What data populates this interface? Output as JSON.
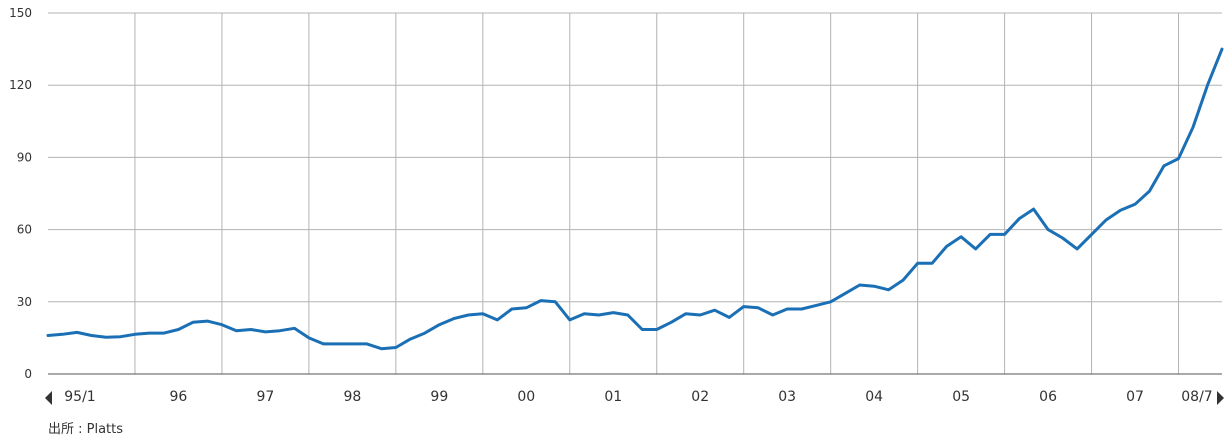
{
  "chart_data": {
    "type": "line",
    "title": "",
    "xlabel": "",
    "ylabel": "",
    "ylim": [
      0,
      150
    ],
    "y_ticks": [
      "0",
      "30",
      "60",
      "90",
      "120",
      "150"
    ],
    "x_tick_labels": [
      "95/1",
      "96",
      "97",
      "98",
      "99",
      "00",
      "01",
      "02",
      "03",
      "04",
      "05",
      "06",
      "07",
      "08/7"
    ],
    "x_range": [
      "1995-01",
      "2008-07"
    ],
    "grid": "on",
    "legend": "none",
    "series": [
      {
        "color": "#1a6fb5",
        "values": [
          [
            "1995-01",
            16
          ],
          [
            "1995-03",
            16.5
          ],
          [
            "1995-05",
            17.3
          ],
          [
            "1995-07",
            16
          ],
          [
            "1995-09",
            15.3
          ],
          [
            "1995-11",
            15.5
          ],
          [
            "1996-01",
            16.5
          ],
          [
            "1996-03",
            17
          ],
          [
            "1996-05",
            17
          ],
          [
            "1996-07",
            18.5
          ],
          [
            "1996-09",
            21.5
          ],
          [
            "1996-11",
            22
          ],
          [
            "1997-01",
            20.5
          ],
          [
            "1997-03",
            18
          ],
          [
            "1997-05",
            18.5
          ],
          [
            "1997-07",
            17.5
          ],
          [
            "1997-09",
            18
          ],
          [
            "1997-11",
            19
          ],
          [
            "1998-01",
            15
          ],
          [
            "1998-03",
            12.5
          ],
          [
            "1998-05",
            12.5
          ],
          [
            "1998-07",
            12.5
          ],
          [
            "1998-09",
            12.5
          ],
          [
            "1998-11",
            10.5
          ],
          [
            "1999-01",
            11
          ],
          [
            "1999-03",
            14.5
          ],
          [
            "1999-05",
            17
          ],
          [
            "1999-07",
            20.5
          ],
          [
            "1999-09",
            23
          ],
          [
            "1999-11",
            24.5
          ],
          [
            "2000-01",
            25
          ],
          [
            "2000-03",
            22.5
          ],
          [
            "2000-05",
            27
          ],
          [
            "2000-07",
            27.5
          ],
          [
            "2000-09",
            30.5
          ],
          [
            "2000-11",
            30
          ],
          [
            "2001-01",
            22.5
          ],
          [
            "2001-03",
            25
          ],
          [
            "2001-05",
            24.5
          ],
          [
            "2001-07",
            25.5
          ],
          [
            "2001-09",
            24.5
          ],
          [
            "2001-11",
            18.5
          ],
          [
            "2002-01",
            18.5
          ],
          [
            "2002-03",
            21.5
          ],
          [
            "2002-05",
            25
          ],
          [
            "2002-07",
            24.5
          ],
          [
            "2002-09",
            26.5
          ],
          [
            "2002-11",
            23.5
          ],
          [
            "2003-01",
            28
          ],
          [
            "2003-03",
            27.5
          ],
          [
            "2003-05",
            24.5
          ],
          [
            "2003-07",
            27
          ],
          [
            "2003-09",
            27
          ],
          [
            "2003-11",
            28.5
          ],
          [
            "2004-01",
            30
          ],
          [
            "2004-03",
            33.5
          ],
          [
            "2004-05",
            37
          ],
          [
            "2004-07",
            36.5
          ],
          [
            "2004-09",
            35
          ],
          [
            "2004-11",
            39
          ],
          [
            "2005-01",
            46
          ],
          [
            "2005-03",
            46
          ],
          [
            "2005-05",
            53
          ],
          [
            "2005-07",
            57
          ],
          [
            "2005-09",
            52
          ],
          [
            "2005-11",
            58
          ],
          [
            "2006-01",
            58
          ],
          [
            "2006-03",
            64.5
          ],
          [
            "2006-05",
            68.5
          ],
          [
            "2006-07",
            60
          ],
          [
            "2006-09",
            56.5
          ],
          [
            "2006-11",
            52
          ],
          [
            "2007-01",
            58
          ],
          [
            "2007-03",
            64
          ],
          [
            "2007-05",
            68
          ],
          [
            "2007-07",
            70.5
          ],
          [
            "2007-09",
            76
          ],
          [
            "2007-11",
            86.5
          ],
          [
            "2008-01",
            89.5
          ],
          [
            "2008-03",
            102.5
          ],
          [
            "2008-05",
            120
          ],
          [
            "2008-07",
            135
          ]
        ]
      }
    ]
  },
  "source_note": "出所 : Platts"
}
